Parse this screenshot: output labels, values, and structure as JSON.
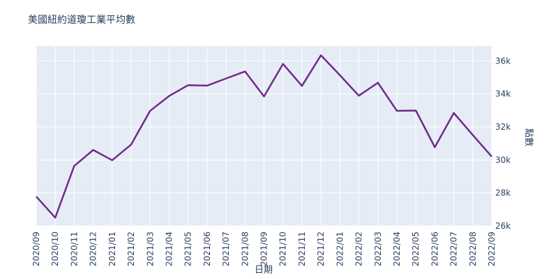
{
  "title": "美國紐約道瓊工業平均數",
  "chart_data": {
    "type": "line",
    "title": "美國紐約道瓊工業平均數",
    "xlabel": "日期",
    "ylabel": "點數",
    "x": [
      "2020/09",
      "2020/10",
      "2020/11",
      "2020/12",
      "2021/01",
      "2021/02",
      "2021/03",
      "2021/04",
      "2021/05",
      "2021/06",
      "2021/07",
      "2021/08",
      "2021/09",
      "2021/10",
      "2021/11",
      "2021/12",
      "2022/01",
      "2022/02",
      "2022/03",
      "2022/04",
      "2022/05",
      "2022/06",
      "2022/07",
      "2022/08",
      "2022/09"
    ],
    "values": [
      27782,
      26502,
      29639,
      30606,
      29983,
      30932,
      32981,
      33875,
      34529,
      34502,
      34935,
      35361,
      33844,
      35820,
      34484,
      36338,
      35132,
      33893,
      34678,
      32977,
      32990,
      30775,
      32845,
      31510,
      30200
    ],
    "ylim": [
      26000,
      36900
    ],
    "yticks": [
      26000,
      28000,
      30000,
      32000,
      34000,
      36000
    ],
    "ytick_labels": [
      "26k",
      "28k",
      "30k",
      "32k",
      "34k",
      "36k"
    ],
    "y_axis_side": "right",
    "x_tick_angle": -90,
    "grid": true,
    "legend_position": "none",
    "colors": {
      "line": "#702b87",
      "plot_background": "#e5ecf6",
      "gridline": "#ffffff",
      "text": "#2a3f5f",
      "page_background": "#ffffff"
    }
  }
}
